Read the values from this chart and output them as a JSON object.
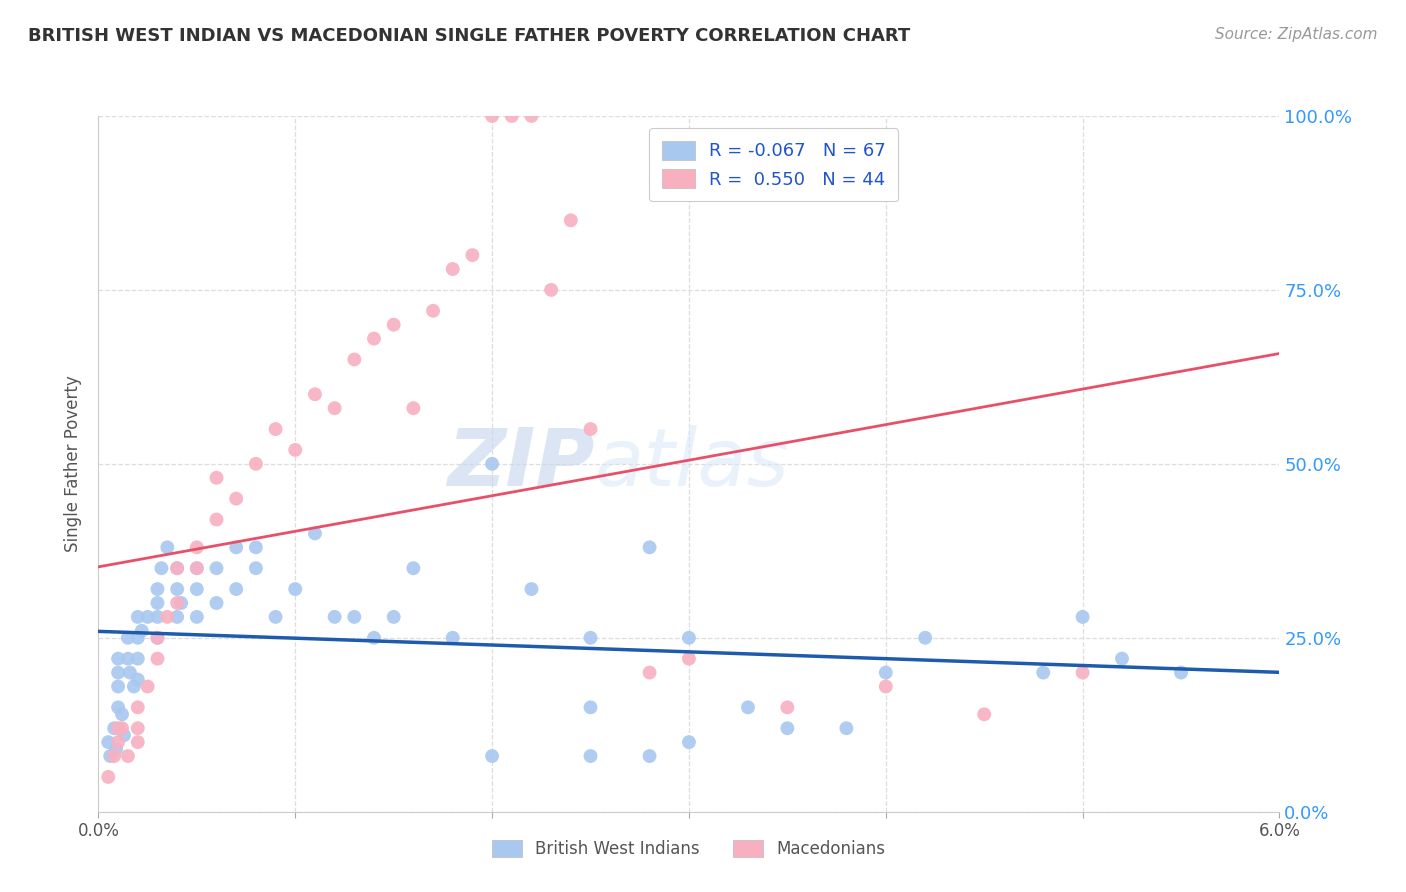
{
  "title": "BRITISH WEST INDIAN VS MACEDONIAN SINGLE FATHER POVERTY CORRELATION CHART",
  "source": "Source: ZipAtlas.com",
  "ylabel": "Single Father Poverty",
  "ytick_values": [
    0.0,
    0.25,
    0.5,
    0.75,
    1.0
  ],
  "ytick_labels": [
    "0.0%",
    "25.0%",
    "50.0%",
    "75.0%",
    "100.0%"
  ],
  "xmin": 0.0,
  "xmax": 0.06,
  "ymin": 0.0,
  "ymax": 1.0,
  "watermark_zip": "ZIP",
  "watermark_atlas": "atlas",
  "blue_color": "#A8C8F0",
  "pink_color": "#F8B0C0",
  "blue_line_color": "#1E5BAD",
  "pink_line_color": "#E8506A",
  "diag_line_color": "#CCCCCC",
  "grid_color": "#DDDDDD",
  "blue_scatter_x": [
    0.0005,
    0.0006,
    0.0008,
    0.0009,
    0.001,
    0.001,
    0.001,
    0.001,
    0.0012,
    0.0013,
    0.0015,
    0.0015,
    0.0016,
    0.0018,
    0.002,
    0.002,
    0.002,
    0.002,
    0.0022,
    0.0025,
    0.003,
    0.003,
    0.003,
    0.003,
    0.0032,
    0.0035,
    0.004,
    0.004,
    0.004,
    0.0042,
    0.005,
    0.005,
    0.005,
    0.006,
    0.006,
    0.007,
    0.007,
    0.008,
    0.008,
    0.009,
    0.01,
    0.011,
    0.012,
    0.013,
    0.014,
    0.015,
    0.016,
    0.018,
    0.02,
    0.022,
    0.025,
    0.028,
    0.03,
    0.035,
    0.04,
    0.042,
    0.048,
    0.05,
    0.052,
    0.055,
    0.038,
    0.02,
    0.025,
    0.03,
    0.033,
    0.025,
    0.028
  ],
  "blue_scatter_y": [
    0.1,
    0.08,
    0.12,
    0.09,
    0.15,
    0.18,
    0.2,
    0.22,
    0.14,
    0.11,
    0.22,
    0.25,
    0.2,
    0.18,
    0.25,
    0.28,
    0.22,
    0.19,
    0.26,
    0.28,
    0.3,
    0.32,
    0.28,
    0.25,
    0.35,
    0.38,
    0.32,
    0.28,
    0.35,
    0.3,
    0.35,
    0.32,
    0.28,
    0.35,
    0.3,
    0.38,
    0.32,
    0.38,
    0.35,
    0.28,
    0.32,
    0.4,
    0.28,
    0.28,
    0.25,
    0.28,
    0.35,
    0.25,
    0.5,
    0.32,
    0.25,
    0.38,
    0.25,
    0.12,
    0.2,
    0.25,
    0.2,
    0.28,
    0.22,
    0.2,
    0.12,
    0.08,
    0.15,
    0.1,
    0.15,
    0.08,
    0.08
  ],
  "pink_scatter_x": [
    0.0005,
    0.0008,
    0.001,
    0.001,
    0.0012,
    0.0015,
    0.002,
    0.002,
    0.002,
    0.0025,
    0.003,
    0.003,
    0.0035,
    0.004,
    0.004,
    0.005,
    0.005,
    0.006,
    0.006,
    0.007,
    0.008,
    0.009,
    0.01,
    0.011,
    0.012,
    0.013,
    0.014,
    0.015,
    0.016,
    0.017,
    0.018,
    0.019,
    0.02,
    0.021,
    0.022,
    0.023,
    0.024,
    0.025,
    0.028,
    0.03,
    0.035,
    0.04,
    0.045,
    0.05
  ],
  "pink_scatter_y": [
    0.05,
    0.08,
    0.1,
    0.12,
    0.12,
    0.08,
    0.15,
    0.12,
    0.1,
    0.18,
    0.22,
    0.25,
    0.28,
    0.3,
    0.35,
    0.35,
    0.38,
    0.42,
    0.48,
    0.45,
    0.5,
    0.55,
    0.52,
    0.6,
    0.58,
    0.65,
    0.68,
    0.7,
    0.58,
    0.72,
    0.78,
    0.8,
    1.0,
    1.0,
    1.0,
    0.75,
    0.85,
    0.55,
    0.2,
    0.22,
    0.15,
    0.18,
    0.14,
    0.2
  ],
  "blue_R": -0.067,
  "blue_N": 67,
  "pink_R": 0.55,
  "pink_N": 44
}
